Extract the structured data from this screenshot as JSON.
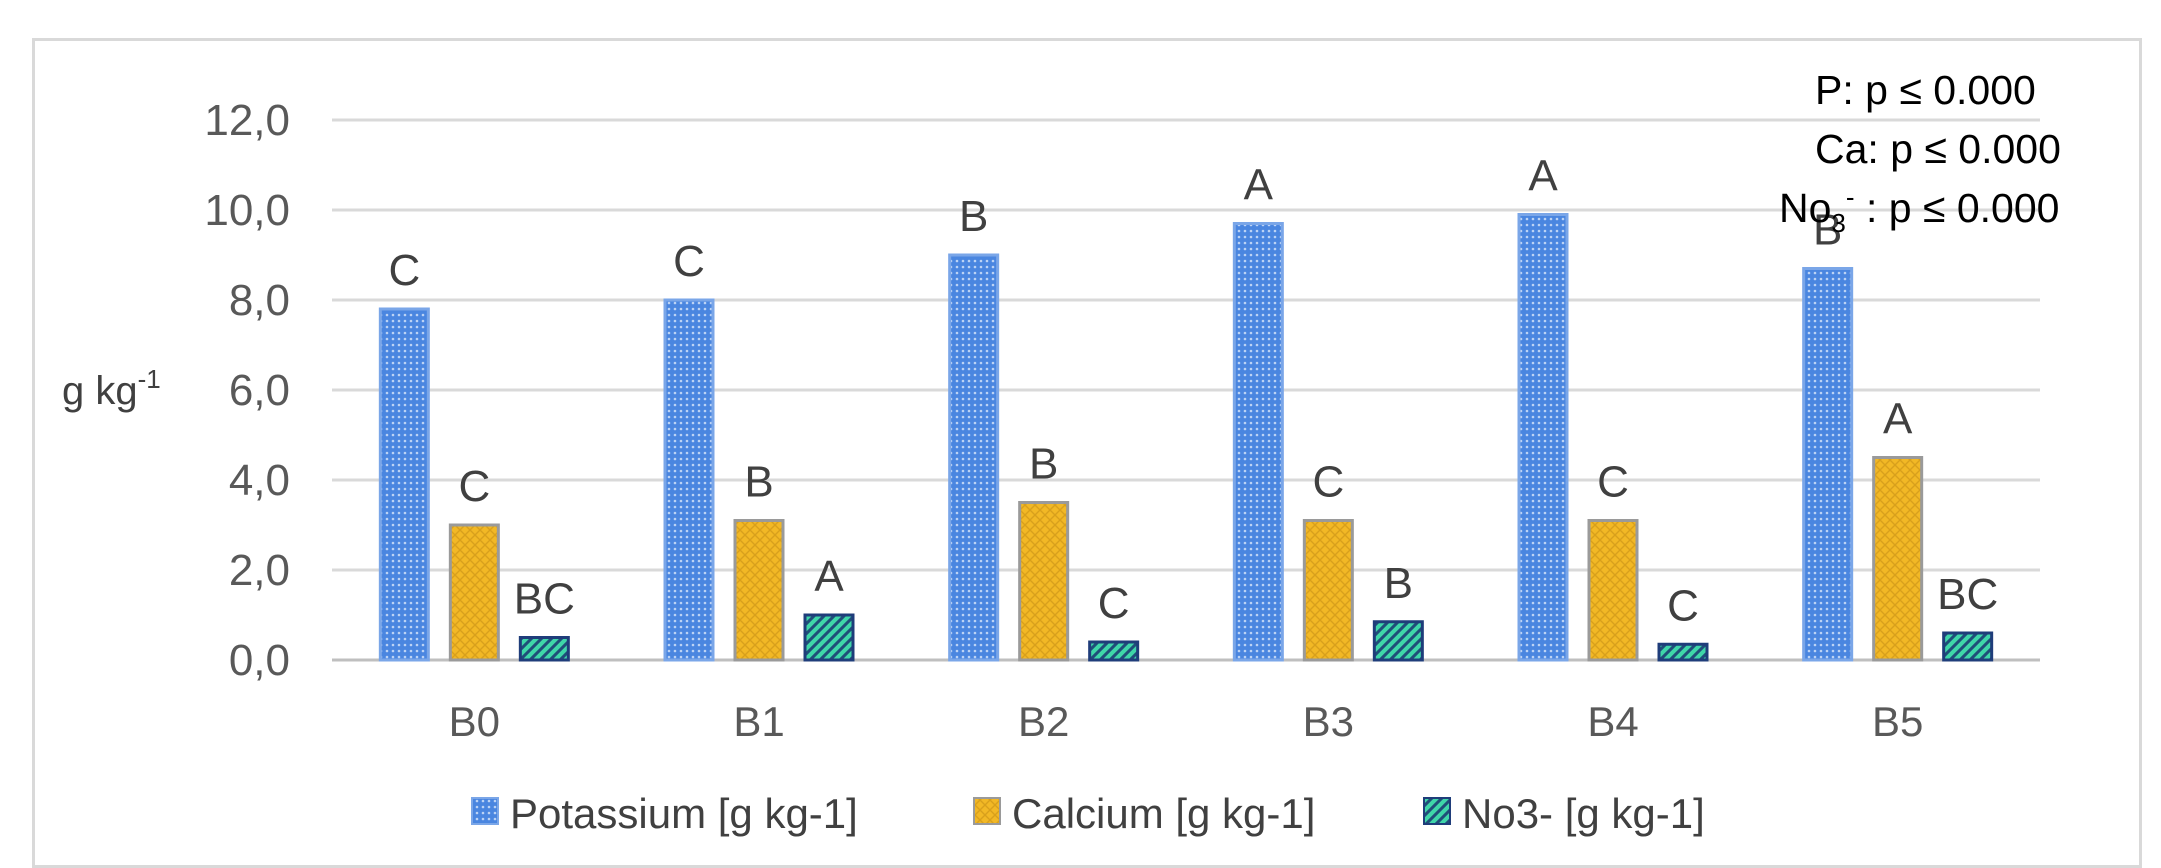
{
  "chart_data": {
    "type": "bar",
    "ylabel": "g kg",
    "ylabel_sup": "-1",
    "ylim": [
      0,
      12
    ],
    "yticks": [
      "0,0",
      "2,0",
      "4,0",
      "6,0",
      "8,0",
      "10,0",
      "12,0"
    ],
    "categories": [
      "B0",
      "B1",
      "B2",
      "B3",
      "B4",
      "B5"
    ],
    "grid": true,
    "legend_position": "bottom",
    "series": [
      {
        "name": "Potassium [g kg-1]",
        "color": "#4a86e0",
        "pattern": "dots",
        "values": [
          7.8,
          8.0,
          9.0,
          9.7,
          9.9,
          8.7
        ],
        "letters": [
          "C",
          "C",
          "B",
          "A",
          "A",
          "B"
        ]
      },
      {
        "name": "Calcium [g kg-1]",
        "color": "#f2b825",
        "pattern": "crosshatch",
        "values": [
          3.0,
          3.1,
          3.5,
          3.1,
          3.1,
          4.5
        ],
        "letters": [
          "C",
          "B",
          "B",
          "C",
          "C",
          "A"
        ]
      },
      {
        "name": "No3- [g kg-1]",
        "color": "#3fd6a8",
        "pattern": "diagonal",
        "values": [
          0.5,
          1.0,
          0.4,
          0.85,
          0.35,
          0.6
        ],
        "letters": [
          "BC",
          "A",
          "C",
          "B",
          "C",
          "BC"
        ]
      }
    ],
    "annotations": {
      "line1": "P: p ≤ 0.000",
      "line2": "Ca: p ≤ 0.000",
      "line3_prefix": "No",
      "line3_sub": "3",
      "line3_sup": "-",
      "line3_suffix": " : p ≤  0.000"
    }
  }
}
